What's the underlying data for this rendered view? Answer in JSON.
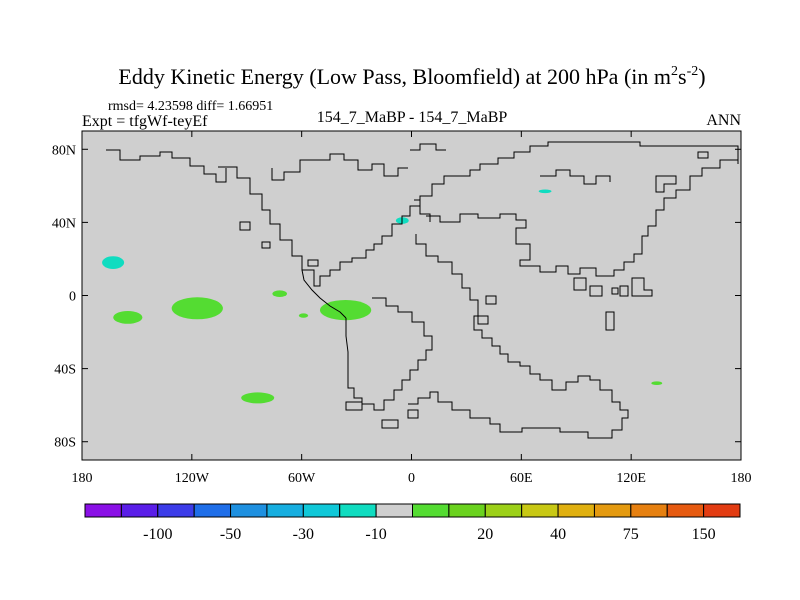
{
  "chart_data": {
    "type": "heatmap",
    "title": "Eddy Kinetic Energy (Low Pass, Bloomfield) at 200 hPa (in m",
    "title_units": {
      "sup1": "2",
      "mid": "s",
      "sup2": "-2",
      "close": ")"
    },
    "rmsd_label": "rmsd= 4.23598 diff= 1.66951",
    "expt_label": "Expt = tfgWf-teyEf",
    "case_label": "154_7_MaBP - 154_7_MaBP",
    "season_label": "ANN",
    "x_axis": {
      "range": [
        -180,
        180
      ],
      "ticks": [
        -180,
        -120,
        -60,
        0,
        60,
        120,
        180
      ],
      "tick_labels": [
        "180",
        "120W",
        "60W",
        "0",
        "60E",
        "120E",
        "180"
      ]
    },
    "y_axis": {
      "range": [
        -90,
        90
      ],
      "ticks": [
        80,
        40,
        0,
        -40,
        -80
      ],
      "tick_labels": [
        "80N",
        "40N",
        "0",
        "40S",
        "80S"
      ]
    },
    "background_value_bin": "-10 to 10",
    "colorbar": {
      "colors": [
        "#8a10e6",
        "#5a1ee8",
        "#3c3ce8",
        "#1f6ee8",
        "#1e90e0",
        "#16aee0",
        "#10c8d8",
        "#10dcc0",
        "#cfcfcf",
        "#54dc32",
        "#6ad21e",
        "#9cd018",
        "#c8c814",
        "#e0b010",
        "#e49a10",
        "#e68010",
        "#e65a10",
        "#e23c12"
      ],
      "labels": [
        "-100",
        "-50",
        "-30",
        "-10",
        "20",
        "40",
        "75",
        "150"
      ],
      "label_after_box": [
        1,
        3,
        5,
        7,
        10,
        12,
        14,
        16
      ]
    },
    "anomalies": [
      {
        "name": "cyan-blob-west-pacific-north",
        "lon": -163,
        "lat": 18,
        "rx": 6,
        "ry": 3.5,
        "color": "#10dcc0"
      },
      {
        "name": "green-blob-pacific-1",
        "lon": -155,
        "lat": -12,
        "rx": 8,
        "ry": 3.5,
        "color": "#54dc32"
      },
      {
        "name": "green-blob-pacific-2",
        "lon": -117,
        "lat": -7,
        "rx": 14,
        "ry": 6,
        "color": "#54dc32"
      },
      {
        "name": "green-blob-small-70w",
        "lon": -72,
        "lat": 1,
        "rx": 4,
        "ry": 1.8,
        "color": "#54dc32"
      },
      {
        "name": "green-blob-tiny-60w",
        "lon": -59,
        "lat": -11,
        "rx": 2.5,
        "ry": 1.2,
        "color": "#54dc32"
      },
      {
        "name": "green-blob-atlantic",
        "lon": -36,
        "lat": -8,
        "rx": 14,
        "ry": 5.5,
        "color": "#54dc32"
      },
      {
        "name": "green-blob-south-pacific",
        "lon": -84,
        "lat": -56,
        "rx": 9,
        "ry": 3,
        "color": "#54dc32"
      },
      {
        "name": "cyan-blob-europe",
        "lon": -5,
        "lat": 41,
        "rx": 3.5,
        "ry": 1.8,
        "color": "#10dcc0"
      },
      {
        "name": "cyan-blob-siberia",
        "lon": 73,
        "lat": 57,
        "rx": 3.5,
        "ry": 1,
        "color": "#10dcc0"
      },
      {
        "name": "green-blob-south-indian",
        "lon": 134,
        "lat": -48,
        "rx": 3,
        "ry": 1,
        "color": "#54dc32"
      }
    ]
  }
}
